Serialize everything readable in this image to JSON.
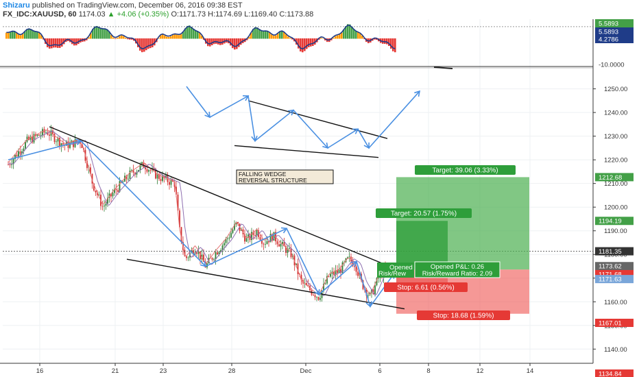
{
  "header": {
    "author": "Shizaru",
    "published": "published on TradingView.com, December 06, 2016 09:38 EST",
    "symbol": "FX_IDC:XAUUSD, 60",
    "last": "1174.03",
    "change": "▲ +4.06 (+0.35%)",
    "open": "O:1171.73",
    "high": "H:1174.69",
    "low": "L:1169.40",
    "close": "C:1173.88"
  },
  "colors": {
    "up": "#2e7d32",
    "down": "#d32f2f",
    "pattern_line": "#111111",
    "projection": "#4a90e2",
    "target_zone": "#4caf50",
    "stop_zone": "#ef5350",
    "osc_green": "#43a047",
    "osc_orange": "#ff9800",
    "osc_red": "#e53935"
  },
  "annotation": {
    "line1": "FALLING WEDGE",
    "line2": "REVERSAL STRUCTURE"
  },
  "positions": {
    "outer": {
      "target": "Target: 39.06 (3.33%)",
      "stop": "Stop: 18.68 (1.59%)",
      "pnl": "Opened P&L: 0.26",
      "rr": "Risk/Reward Ratio: 2.09"
    },
    "inner": {
      "target": "Target: 20.57 (1.75%)",
      "stop": "Stop: 6.61 (0.56%)",
      "opened": "Opened",
      "risk": "Risk/Rew"
    }
  },
  "indicator": {
    "labels": [
      "5.5893",
      "5.5893",
      "4.2786",
      "-10.0000"
    ]
  },
  "chart_data": {
    "type": "candlestick",
    "symbol": "XAUUSD",
    "timeframe": "60",
    "x_ticks": [
      "16",
      "21",
      "23",
      "28",
      "Dec",
      "6",
      "8",
      "12",
      "14"
    ],
    "y_ticks": [
      1140,
      1150,
      1160,
      1170,
      1180,
      1190,
      1200,
      1210,
      1220,
      1230,
      1240,
      1250
    ],
    "y_tick_labels": [
      "1140.00",
      "1150.00",
      "1160.00",
      "1170.00",
      "1180.00",
      "1190.00",
      "1200.00",
      "1210.00",
      "1220.00",
      "1230.00",
      "1240.00",
      "1250.00"
    ],
    "ylim": [
      1134,
      1258
    ],
    "grid": true,
    "price_labels": [
      {
        "value": 1212.68,
        "text": "1212.68",
        "color": "#43a047"
      },
      {
        "value": 1194.19,
        "text": "1194.19",
        "color": "#43a047"
      },
      {
        "value": 1181.35,
        "text": "1181.35",
        "color": "#333333"
      },
      {
        "value": 1173.88,
        "text": "1173.88",
        "color": "#43a047"
      },
      {
        "value": 1173.62,
        "text": "1173.62",
        "color": "#666666"
      },
      {
        "value": 1173.62,
        "text": "1173.62",
        "color": "#666666"
      },
      {
        "value": 1171.68,
        "text": "1171.68",
        "color": "#e53935"
      },
      {
        "value": 1171.63,
        "text": "1171.63",
        "color": "#7aa6d9"
      },
      {
        "value": 1167.01,
        "text": "1167.01",
        "color": "#e53935"
      },
      {
        "value": 1134.84,
        "text": "1134.84",
        "color": "#e53935"
      }
    ],
    "oscillator_ylim": [
      -10,
      7
    ]
  }
}
